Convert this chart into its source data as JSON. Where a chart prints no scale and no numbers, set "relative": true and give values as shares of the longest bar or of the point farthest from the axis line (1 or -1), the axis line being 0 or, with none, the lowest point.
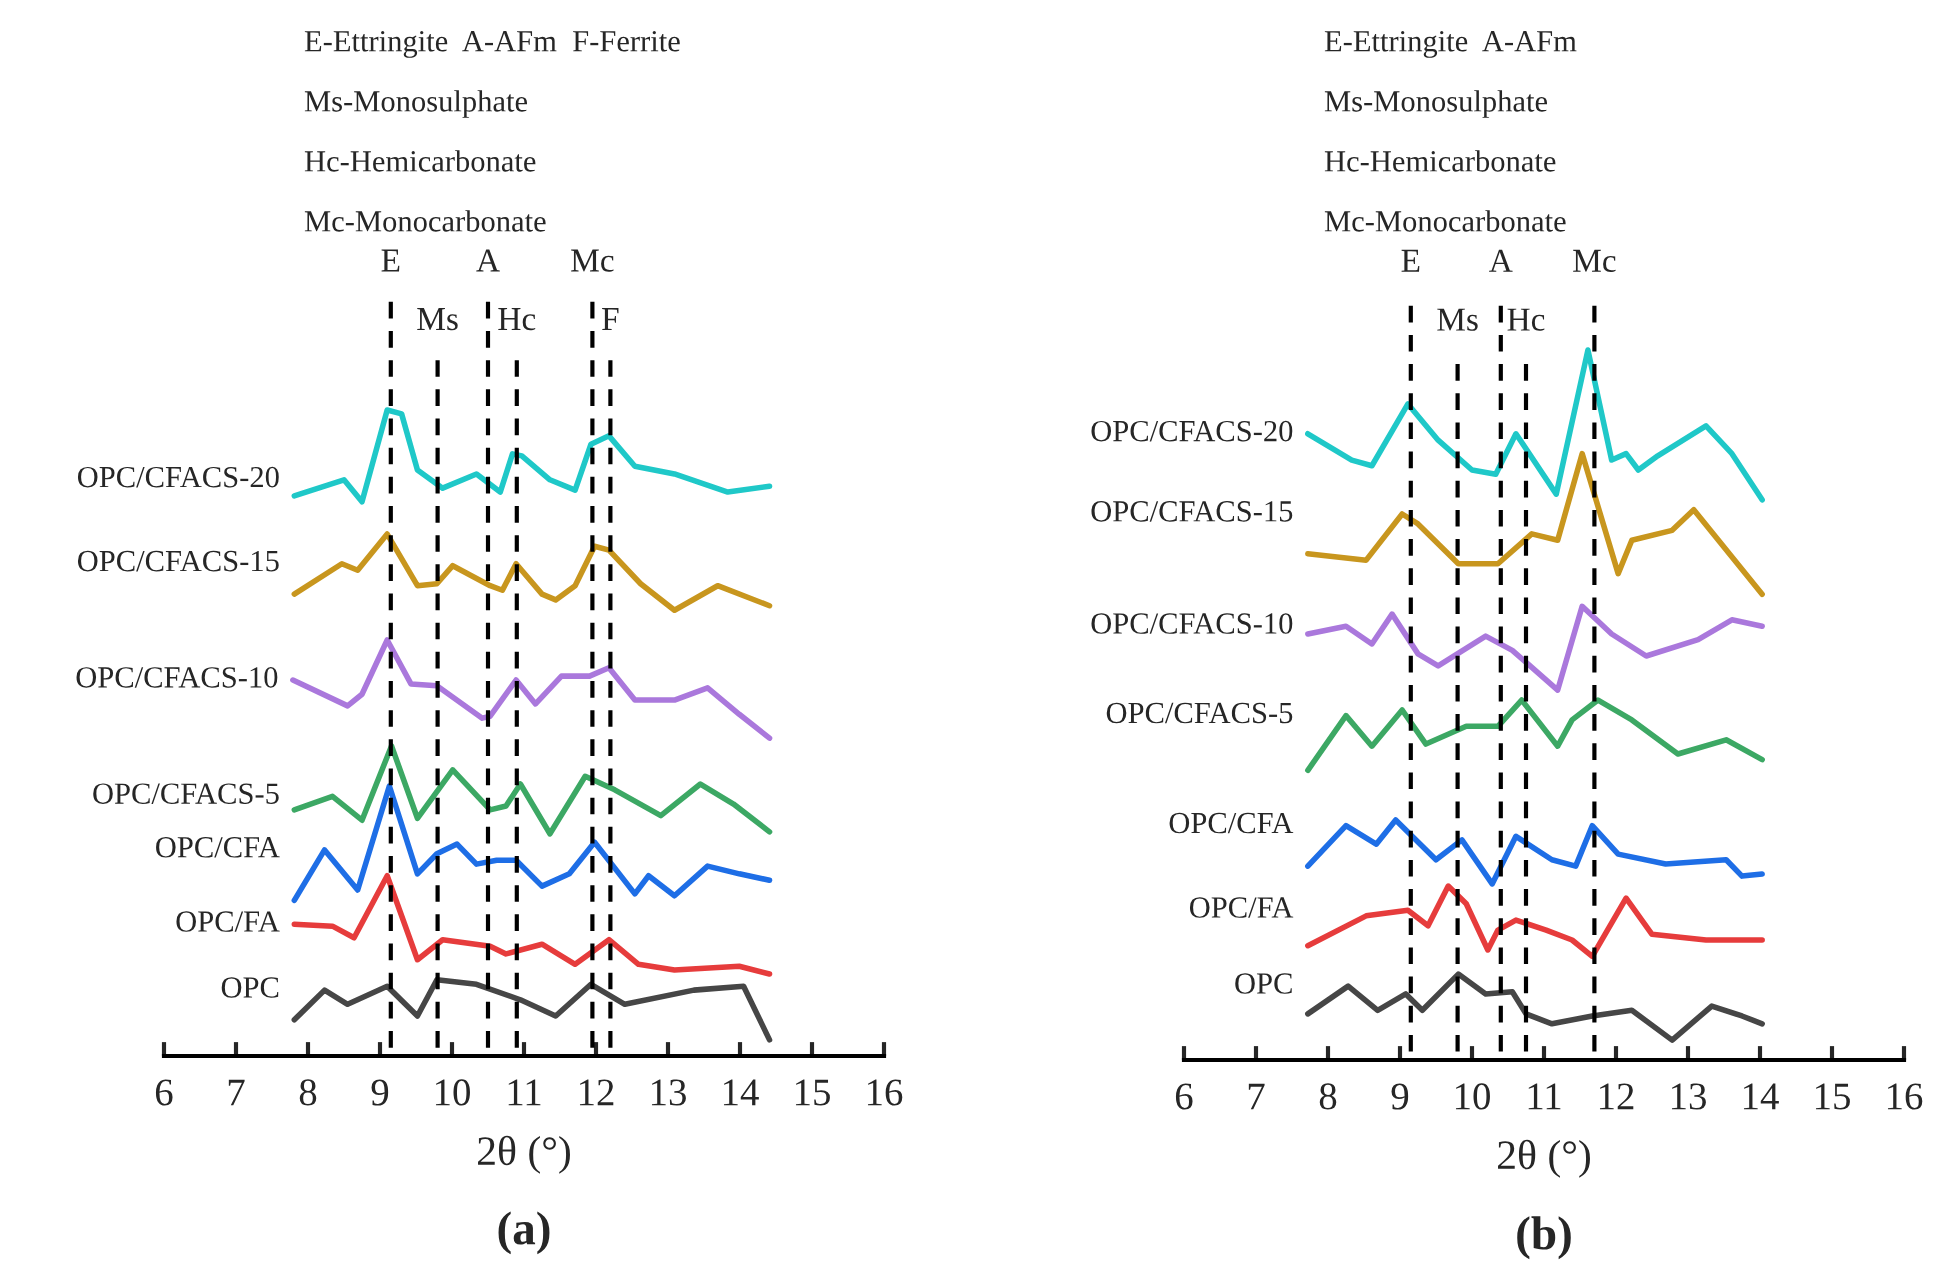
{
  "chart_data": [
    {
      "type": "line",
      "title": "(a)",
      "xlabel": "2θ (°)",
      "relative": true,
      "xlim": [
        6,
        16
      ],
      "xticks": [
        6,
        7,
        8,
        9,
        10,
        11,
        12,
        13,
        14,
        15,
        16
      ],
      "grid": false,
      "legend": false,
      "marker": "none",
      "line_style": "solid",
      "annotations": [
        "E-Ettringite  A-AFm  F-Ferrite",
        "Ms-Monosulphate",
        "Hc-Hemicarbonate",
        "Mc-Monocarbonate"
      ],
      "ref_lines": [
        {
          "axis": "x",
          "value": 9.15,
          "label": "E",
          "line_style": "dashed",
          "color": "#000000"
        },
        {
          "axis": "x",
          "value": 9.8,
          "label": "Ms",
          "line_style": "dashed",
          "color": "#000000"
        },
        {
          "axis": "x",
          "value": 10.5,
          "label": "A",
          "line_style": "dashed",
          "color": "#000000"
        },
        {
          "axis": "x",
          "value": 10.9,
          "label": "Hc",
          "line_style": "dashed",
          "color": "#000000"
        },
        {
          "axis": "x",
          "value": 11.95,
          "label": "Mc",
          "line_style": "dashed",
          "color": "#000000"
        },
        {
          "axis": "x",
          "value": 12.2,
          "label": "F",
          "line_style": "dashed",
          "color": "#000000"
        }
      ],
      "series": [
        {
          "name": "OPC/CFACS-20",
          "color": "#1fc8c8",
          "x": [
            7.81,
            8.5,
            8.75,
            9.1,
            9.3,
            9.52,
            9.87,
            10.34,
            10.67,
            10.84,
            10.97,
            11.36,
            11.71,
            11.93,
            12.18,
            12.54,
            13.09,
            13.83,
            14.41
          ],
          "values": [
            0.867,
            0.892,
            0.858,
            1.0,
            0.994,
            0.907,
            0.879,
            0.901,
            0.873,
            0.932,
            0.929,
            0.892,
            0.876,
            0.947,
            0.96,
            0.913,
            0.901,
            0.873,
            0.882
          ]
        },
        {
          "name": "OPC/CFACS-15",
          "color": "#c8961e",
          "x": [
            7.81,
            8.47,
            8.69,
            9.1,
            9.52,
            9.79,
            10.01,
            10.53,
            10.7,
            10.89,
            11.25,
            11.44,
            11.71,
            11.98,
            12.18,
            12.62,
            13.09,
            13.69,
            14.41
          ],
          "values": [
            0.715,
            0.762,
            0.752,
            0.808,
            0.728,
            0.731,
            0.759,
            0.728,
            0.721,
            0.762,
            0.715,
            0.706,
            0.728,
            0.789,
            0.783,
            0.731,
            0.69,
            0.728,
            0.697
          ]
        },
        {
          "name": "OPC/CFACS-10",
          "color": "#aa78dc",
          "x": [
            7.79,
            8.55,
            8.75,
            9.1,
            9.43,
            9.79,
            10.42,
            10.53,
            10.89,
            11.16,
            11.52,
            11.91,
            12.18,
            12.54,
            13.09,
            13.55,
            13.99,
            14.41
          ],
          "values": [
            0.582,
            0.542,
            0.56,
            0.644,
            0.576,
            0.573,
            0.523,
            0.526,
            0.582,
            0.545,
            0.588,
            0.588,
            0.601,
            0.551,
            0.551,
            0.57,
            0.529,
            0.492
          ]
        },
        {
          "name": "OPC/CFACS-5",
          "color": "#3ca864",
          "x": [
            7.81,
            8.34,
            8.75,
            9.16,
            9.52,
            10.01,
            10.53,
            10.75,
            10.95,
            11.36,
            11.85,
            12.26,
            12.9,
            13.45,
            13.91,
            14.41
          ],
          "values": [
            0.381,
            0.402,
            0.365,
            0.48,
            0.368,
            0.443,
            0.381,
            0.387,
            0.421,
            0.344,
            0.433,
            0.412,
            0.372,
            0.421,
            0.39,
            0.347
          ]
        },
        {
          "name": "OPC/CFA",
          "color": "#1e6ee6",
          "x": [
            7.81,
            8.23,
            8.69,
            9.13,
            9.52,
            9.79,
            10.07,
            10.34,
            10.62,
            10.89,
            11.25,
            11.63,
            11.98,
            12.54,
            12.73,
            13.09,
            13.55,
            13.99,
            14.41
          ],
          "values": [
            0.241,
            0.319,
            0.257,
            0.418,
            0.282,
            0.313,
            0.328,
            0.297,
            0.303,
            0.303,
            0.263,
            0.282,
            0.331,
            0.251,
            0.279,
            0.248,
            0.294,
            0.282,
            0.272
          ]
        },
        {
          "name": "OPC/FA",
          "color": "#e63c3c",
          "x": [
            7.81,
            8.34,
            8.64,
            9.1,
            9.52,
            9.87,
            10.53,
            10.75,
            11.25,
            11.71,
            12.18,
            12.59,
            13.09,
            13.99,
            14.41
          ],
          "values": [
            0.204,
            0.201,
            0.183,
            0.279,
            0.149,
            0.18,
            0.17,
            0.158,
            0.173,
            0.142,
            0.18,
            0.142,
            0.133,
            0.139,
            0.127
          ]
        },
        {
          "name": "OPC",
          "color": "#464646",
          "x": [
            7.81,
            8.23,
            8.55,
            9.1,
            9.52,
            9.79,
            10.34,
            10.95,
            11.44,
            11.93,
            12.4,
            13.36,
            14.05,
            14.41
          ],
          "values": [
            0.056,
            0.102,
            0.08,
            0.108,
            0.062,
            0.118,
            0.111,
            0.087,
            0.062,
            0.111,
            0.08,
            0.102,
            0.108,
            0.025
          ]
        }
      ]
    },
    {
      "type": "line",
      "title": "(b)",
      "xlabel": "2θ (°)",
      "relative": true,
      "xlim": [
        6,
        16
      ],
      "xticks": [
        6,
        7,
        8,
        9,
        10,
        11,
        12,
        13,
        14,
        15,
        16
      ],
      "grid": false,
      "legend": false,
      "marker": "none",
      "line_style": "solid",
      "annotations": [
        "E-Ettringite  A-AFm",
        "Ms-Monosulphate",
        "Hc-Hemicarbonate",
        "Mc-Monocarbonate"
      ],
      "ref_lines": [
        {
          "axis": "x",
          "value": 9.15,
          "label": "E",
          "line_style": "dashed",
          "color": "#000000"
        },
        {
          "axis": "x",
          "value": 9.8,
          "label": "Ms",
          "line_style": "dashed",
          "color": "#000000"
        },
        {
          "axis": "x",
          "value": 10.4,
          "label": "A",
          "line_style": "dashed",
          "color": "#000000"
        },
        {
          "axis": "x",
          "value": 10.75,
          "label": "Hc",
          "line_style": "dashed",
          "color": "#000000"
        },
        {
          "axis": "x",
          "value": 11.7,
          "label": "Mc",
          "line_style": "dashed",
          "color": "#000000"
        }
      ],
      "series": [
        {
          "name": "OPC/CFACS-20",
          "color": "#1fc8c8",
          "x": [
            7.72,
            8.33,
            8.61,
            9.11,
            9.53,
            10.0,
            10.33,
            10.61,
            11.17,
            11.61,
            11.94,
            12.14,
            12.31,
            12.58,
            13.25,
            13.61,
            14.03
          ],
          "values": [
            0.882,
            0.845,
            0.837,
            0.924,
            0.873,
            0.831,
            0.825,
            0.882,
            0.797,
            1.0,
            0.845,
            0.854,
            0.831,
            0.851,
            0.893,
            0.854,
            0.789
          ]
        },
        {
          "name": "OPC/CFACS-15",
          "color": "#c8961e",
          "x": [
            7.72,
            8.53,
            9.03,
            9.25,
            9.81,
            10.36,
            10.83,
            11.19,
            11.53,
            12.03,
            12.22,
            12.78,
            13.08,
            14.03
          ],
          "values": [
            0.713,
            0.704,
            0.769,
            0.755,
            0.699,
            0.699,
            0.741,
            0.732,
            0.854,
            0.685,
            0.732,
            0.746,
            0.775,
            0.656
          ]
        },
        {
          "name": "OPC/CFACS-10",
          "color": "#aa78dc",
          "x": [
            7.72,
            8.25,
            8.61,
            8.89,
            9.25,
            9.53,
            10.19,
            10.56,
            11.19,
            11.53,
            11.94,
            12.42,
            13.14,
            13.61,
            14.03
          ],
          "values": [
            0.6,
            0.611,
            0.586,
            0.628,
            0.572,
            0.555,
            0.597,
            0.577,
            0.521,
            0.639,
            0.6,
            0.569,
            0.592,
            0.62,
            0.611
          ]
        },
        {
          "name": "OPC/CFACS-5",
          "color": "#3ca864",
          "x": [
            7.72,
            8.25,
            8.61,
            9.03,
            9.36,
            9.92,
            10.36,
            10.69,
            11.19,
            11.39,
            11.75,
            12.22,
            12.86,
            13.53,
            14.03
          ],
          "values": [
            0.408,
            0.485,
            0.442,
            0.493,
            0.445,
            0.47,
            0.47,
            0.507,
            0.442,
            0.479,
            0.507,
            0.479,
            0.431,
            0.451,
            0.423
          ]
        },
        {
          "name": "OPC/CFA",
          "color": "#1e6ee6",
          "x": [
            7.72,
            8.25,
            8.67,
            8.94,
            9.5,
            9.86,
            10.28,
            10.61,
            11.11,
            11.44,
            11.67,
            12.03,
            12.69,
            13.53,
            13.75,
            14.03
          ],
          "values": [
            0.273,
            0.33,
            0.304,
            0.338,
            0.282,
            0.31,
            0.248,
            0.315,
            0.282,
            0.273,
            0.33,
            0.29,
            0.276,
            0.282,
            0.259,
            0.262
          ]
        },
        {
          "name": "OPC/FA",
          "color": "#e63c3c",
          "x": [
            7.72,
            8.53,
            9.11,
            9.39,
            9.67,
            9.92,
            10.22,
            10.36,
            10.61,
            11.03,
            11.39,
            11.67,
            12.14,
            12.5,
            13.25,
            14.03
          ],
          "values": [
            0.161,
            0.203,
            0.211,
            0.189,
            0.245,
            0.22,
            0.155,
            0.183,
            0.197,
            0.183,
            0.169,
            0.146,
            0.228,
            0.177,
            0.169,
            0.169
          ]
        },
        {
          "name": "OPC",
          "color": "#464646",
          "x": [
            7.72,
            8.28,
            8.69,
            9.08,
            9.31,
            9.81,
            10.19,
            10.56,
            10.75,
            11.11,
            11.67,
            12.22,
            12.78,
            13.33,
            13.75,
            14.03
          ],
          "values": [
            0.065,
            0.104,
            0.07,
            0.093,
            0.07,
            0.121,
            0.093,
            0.096,
            0.065,
            0.051,
            0.062,
            0.07,
            0.028,
            0.076,
            0.062,
            0.051
          ]
        }
      ]
    }
  ]
}
